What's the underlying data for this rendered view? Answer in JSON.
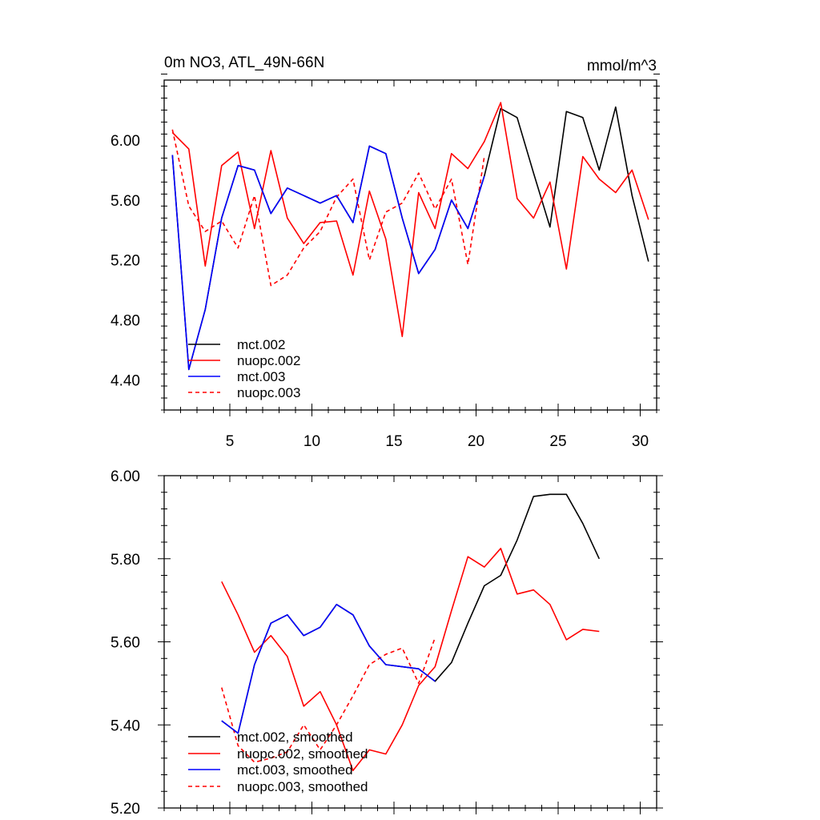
{
  "chart_data": [
    {
      "type": "line",
      "title_left": "0m NO3, ATL_49N-66N",
      "title_right": "mmol/m^3",
      "xlim": [
        1,
        31
      ],
      "ylim": [
        4.2,
        6.4
      ],
      "xticks": [
        5,
        10,
        15,
        20,
        25,
        30
      ],
      "xtick_labels": [
        "5",
        "10",
        "15",
        "20",
        "25",
        "30"
      ],
      "yticks": [
        4.4,
        4.8,
        5.2,
        5.6,
        6.0
      ],
      "ytick_labels": [
        "4.40",
        "4.80",
        "5.20",
        "5.60",
        "6.00"
      ],
      "legend_position": "bottom-left",
      "series": [
        {
          "name": "mct.002",
          "color": "#000000",
          "dash": false,
          "points": [
            [
              1.5,
              5.9
            ],
            [
              2.5,
              4.47
            ],
            [
              3.5,
              4.87
            ],
            [
              4.5,
              5.48
            ],
            [
              5.5,
              5.83
            ],
            [
              6.5,
              5.8
            ],
            [
              7.5,
              5.51
            ],
            [
              8.5,
              5.68
            ],
            [
              9.5,
              5.63
            ],
            [
              10.5,
              5.58
            ],
            [
              11.5,
              5.63
            ],
            [
              12.5,
              5.45
            ],
            [
              13.5,
              5.96
            ],
            [
              14.5,
              5.91
            ],
            [
              15.5,
              5.48
            ],
            [
              16.5,
              5.11
            ],
            [
              17.5,
              5.27
            ],
            [
              18.5,
              5.6
            ],
            [
              19.5,
              5.41
            ],
            [
              20.5,
              5.76
            ],
            [
              21.5,
              6.21
            ],
            [
              22.5,
              6.15
            ],
            [
              23.5,
              5.78
            ],
            [
              24.5,
              5.42
            ],
            [
              25.5,
              6.19
            ],
            [
              26.5,
              6.15
            ],
            [
              27.5,
              5.8
            ],
            [
              28.5,
              6.22
            ],
            [
              29.5,
              5.63
            ],
            [
              30.5,
              5.19
            ]
          ]
        },
        {
          "name": "nuopc.002",
          "color": "#ff0000",
          "dash": false,
          "points": [
            [
              1.5,
              6.05
            ],
            [
              2.5,
              5.94
            ],
            [
              3.5,
              5.16
            ],
            [
              4.5,
              5.83
            ],
            [
              5.5,
              5.92
            ],
            [
              6.5,
              5.41
            ],
            [
              7.5,
              5.93
            ],
            [
              8.5,
              5.48
            ],
            [
              9.5,
              5.31
            ],
            [
              10.5,
              5.45
            ],
            [
              11.5,
              5.46
            ],
            [
              12.5,
              5.1
            ],
            [
              13.5,
              5.66
            ],
            [
              14.5,
              5.34
            ],
            [
              15.5,
              4.69
            ],
            [
              16.5,
              5.65
            ],
            [
              17.5,
              5.41
            ],
            [
              18.5,
              5.91
            ],
            [
              19.5,
              5.81
            ],
            [
              20.5,
              5.99
            ],
            [
              21.5,
              6.25
            ],
            [
              22.5,
              5.61
            ],
            [
              23.5,
              5.48
            ],
            [
              24.5,
              5.72
            ],
            [
              25.5,
              5.14
            ],
            [
              26.5,
              5.89
            ],
            [
              27.5,
              5.74
            ],
            [
              28.5,
              5.65
            ],
            [
              29.5,
              5.8
            ],
            [
              30.5,
              5.47
            ]
          ]
        },
        {
          "name": "mct.003",
          "color": "#0000ff",
          "dash": false,
          "points": [
            [
              1.5,
              5.9
            ],
            [
              2.5,
              4.47
            ],
            [
              3.5,
              4.87
            ],
            [
              4.5,
              5.48
            ],
            [
              5.5,
              5.83
            ],
            [
              6.5,
              5.8
            ],
            [
              7.5,
              5.51
            ],
            [
              8.5,
              5.68
            ],
            [
              9.5,
              5.63
            ],
            [
              10.5,
              5.58
            ],
            [
              11.5,
              5.63
            ],
            [
              12.5,
              5.45
            ],
            [
              13.5,
              5.96
            ],
            [
              14.5,
              5.91
            ],
            [
              15.5,
              5.48
            ],
            [
              16.5,
              5.11
            ],
            [
              17.5,
              5.27
            ],
            [
              18.5,
              5.6
            ],
            [
              19.5,
              5.41
            ],
            [
              20.5,
              5.76
            ]
          ]
        },
        {
          "name": "nuopc.003",
          "color": "#ff0000",
          "dash": true,
          "points": [
            [
              1.5,
              6.07
            ],
            [
              2.5,
              5.56
            ],
            [
              3.5,
              5.39
            ],
            [
              4.5,
              5.46
            ],
            [
              5.5,
              5.28
            ],
            [
              6.5,
              5.63
            ],
            [
              7.5,
              5.03
            ],
            [
              8.5,
              5.1
            ],
            [
              9.5,
              5.28
            ],
            [
              10.5,
              5.39
            ],
            [
              11.5,
              5.62
            ],
            [
              12.5,
              5.74
            ],
            [
              13.5,
              5.2
            ],
            [
              14.5,
              5.52
            ],
            [
              15.5,
              5.58
            ],
            [
              16.5,
              5.78
            ],
            [
              17.5,
              5.54
            ],
            [
              18.5,
              5.74
            ],
            [
              19.5,
              5.17
            ],
            [
              20.5,
              5.89
            ]
          ]
        }
      ]
    },
    {
      "type": "line",
      "xlim": [
        1,
        31
      ],
      "ylim": [
        5.2,
        6.0
      ],
      "xticks": [
        5,
        10,
        15,
        20,
        25,
        30
      ],
      "yticks": [
        5.2,
        5.4,
        5.6,
        5.8,
        6.0
      ],
      "ytick_labels": [
        "5.20",
        "5.40",
        "5.60",
        "5.80",
        "6.00"
      ],
      "legend_position": "bottom-left",
      "series": [
        {
          "name": "mct.002, smoothed",
          "color": "#000000",
          "dash": false,
          "points": [
            [
              4.5,
              5.41
            ],
            [
              5.5,
              5.38
            ],
            [
              6.5,
              5.545
            ],
            [
              7.5,
              5.645
            ],
            [
              8.5,
              5.665
            ],
            [
              9.5,
              5.615
            ],
            [
              10.5,
              5.635
            ],
            [
              11.5,
              5.69
            ],
            [
              12.5,
              5.665
            ],
            [
              13.5,
              5.59
            ],
            [
              14.5,
              5.545
            ],
            [
              15.5,
              5.54
            ],
            [
              16.5,
              5.535
            ],
            [
              17.5,
              5.505
            ],
            [
              18.5,
              5.55
            ],
            [
              19.5,
              5.645
            ],
            [
              20.5,
              5.735
            ],
            [
              21.5,
              5.76
            ],
            [
              22.5,
              5.845
            ],
            [
              23.5,
              5.95
            ],
            [
              24.5,
              5.955
            ],
            [
              25.5,
              5.955
            ],
            [
              26.5,
              5.885
            ],
            [
              27.5,
              5.8
            ]
          ]
        },
        {
          "name": "nuopc.002, smoothed",
          "color": "#ff0000",
          "dash": false,
          "points": [
            [
              4.5,
              5.745
            ],
            [
              5.5,
              5.665
            ],
            [
              6.5,
              5.575
            ],
            [
              7.5,
              5.615
            ],
            [
              8.5,
              5.565
            ],
            [
              9.5,
              5.445
            ],
            [
              10.5,
              5.48
            ],
            [
              11.5,
              5.4
            ],
            [
              12.5,
              5.29
            ],
            [
              13.5,
              5.34
            ],
            [
              14.5,
              5.33
            ],
            [
              15.5,
              5.4
            ],
            [
              16.5,
              5.495
            ],
            [
              17.5,
              5.54
            ],
            [
              18.5,
              5.675
            ],
            [
              19.5,
              5.805
            ],
            [
              20.5,
              5.78
            ],
            [
              21.5,
              5.825
            ],
            [
              22.5,
              5.715
            ],
            [
              23.5,
              5.725
            ],
            [
              24.5,
              5.69
            ],
            [
              25.5,
              5.605
            ],
            [
              26.5,
              5.63
            ],
            [
              27.5,
              5.625
            ]
          ]
        },
        {
          "name": "mct.003, smoothed",
          "color": "#0000ff",
          "dash": false,
          "points": [
            [
              4.5,
              5.41
            ],
            [
              5.5,
              5.38
            ],
            [
              6.5,
              5.545
            ],
            [
              7.5,
              5.645
            ],
            [
              8.5,
              5.665
            ],
            [
              9.5,
              5.615
            ],
            [
              10.5,
              5.635
            ],
            [
              11.5,
              5.69
            ],
            [
              12.5,
              5.665
            ],
            [
              13.5,
              5.59
            ],
            [
              14.5,
              5.545
            ],
            [
              15.5,
              5.54
            ],
            [
              16.5,
              5.535
            ],
            [
              17.5,
              5.505
            ]
          ]
        },
        {
          "name": "nuopc.003, smoothed",
          "color": "#ff0000",
          "dash": true,
          "points": [
            [
              4.5,
              5.49
            ],
            [
              5.5,
              5.35
            ],
            [
              6.5,
              5.31
            ],
            [
              7.5,
              5.32
            ],
            [
              8.5,
              5.335
            ],
            [
              9.5,
              5.4
            ],
            [
              10.5,
              5.34
            ],
            [
              11.5,
              5.4
            ],
            [
              12.5,
              5.47
            ],
            [
              13.5,
              5.545
            ],
            [
              14.5,
              5.57
            ],
            [
              15.5,
              5.585
            ],
            [
              16.5,
              5.5
            ],
            [
              17.5,
              5.61
            ]
          ]
        }
      ]
    }
  ]
}
